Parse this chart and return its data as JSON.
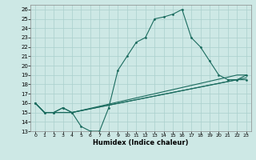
{
  "title": "",
  "xlabel": "Humidex (Indice chaleur)",
  "background_color": "#cde8e5",
  "line_color": "#1a6b5e",
  "grid_color": "#aacfcc",
  "xlim": [
    -0.5,
    23.5
  ],
  "ylim": [
    13,
    26.5
  ],
  "xticks": [
    0,
    1,
    2,
    3,
    4,
    5,
    6,
    7,
    8,
    9,
    10,
    11,
    12,
    13,
    14,
    15,
    16,
    17,
    18,
    19,
    20,
    21,
    22,
    23
  ],
  "yticks": [
    13,
    14,
    15,
    16,
    17,
    18,
    19,
    20,
    21,
    22,
    23,
    24,
    25,
    26
  ],
  "line1_x": [
    0,
    1,
    2,
    3,
    4,
    5,
    6,
    7,
    8,
    9,
    10,
    11,
    12,
    13,
    14,
    15,
    16,
    17,
    18,
    19,
    20,
    21,
    22,
    23
  ],
  "line1_y": [
    16,
    15,
    15,
    15.5,
    15,
    13.5,
    13,
    13,
    15.5,
    19.5,
    21,
    22.5,
    23,
    25,
    25.2,
    25.5,
    26,
    23,
    22,
    20.5,
    19,
    18.5,
    18.5,
    18.5
  ],
  "line2_x": [
    0,
    1,
    2,
    3,
    4,
    22,
    23
  ],
  "line2_y": [
    16,
    15,
    15,
    15.5,
    15,
    18.5,
    19
  ],
  "line3_x": [
    0,
    1,
    4,
    22,
    23
  ],
  "line3_y": [
    16,
    15,
    15,
    19,
    19
  ],
  "line4_x": [
    0,
    1,
    4,
    22,
    23
  ],
  "line4_y": [
    16,
    15,
    15,
    18.5,
    18.7
  ]
}
